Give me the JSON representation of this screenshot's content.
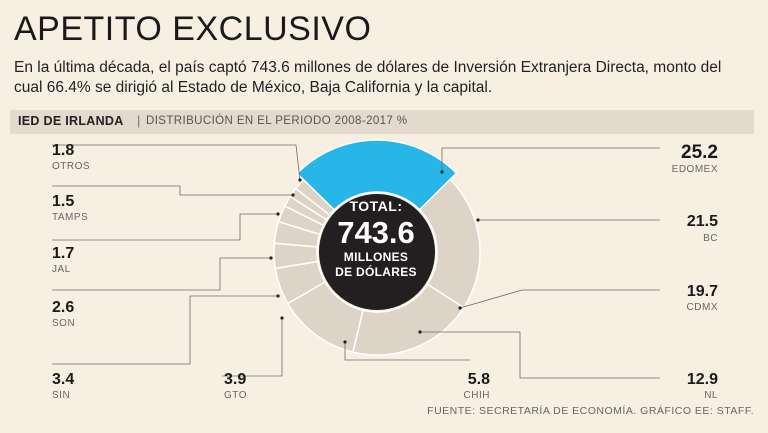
{
  "title": "APETITO EXCLUSIVO",
  "subtitle": "En la última década, el país captó 743.6 millones de dólares de Inversión Extranjera Directa, monto del cual 66.4% se dirigió al Estado de México, Baja California y la capital.",
  "band": {
    "strong": "IED DE IRLANDA",
    "separator": "|",
    "light": "DISTRIBUCIÓN EN EL PERIODO 2008-2017 %"
  },
  "center": {
    "label": "TOTAL:",
    "value": "743.6",
    "unit_line1": "MILLONES",
    "unit_line2": "DE DÓLARES"
  },
  "source": "FUENTE: SECRETARÍA DE ECONOMÍA. GRÁFICO EE: STAFF.",
  "colors": {
    "highlight": "#27b6e8",
    "slice": "#ddd3c6",
    "center": "#231f20",
    "background": "#f8efe3",
    "band": "#e3d9cc"
  },
  "chart_data": {
    "type": "pie",
    "unit": "%",
    "slices": [
      {
        "name": "EDOMEX",
        "value": 25.2,
        "highlight": true
      },
      {
        "name": "BC",
        "value": 21.5
      },
      {
        "name": "CDMX",
        "value": 19.7
      },
      {
        "name": "NL",
        "value": 12.9
      },
      {
        "name": "CHIH",
        "value": 5.8
      },
      {
        "name": "GTO",
        "value": 3.9
      },
      {
        "name": "SIN",
        "value": 3.4
      },
      {
        "name": "SON",
        "value": 2.6
      },
      {
        "name": "JAL",
        "value": 1.7
      },
      {
        "name": "TAMPS",
        "value": 1.5
      },
      {
        "name": "OTROS",
        "value": 1.8
      }
    ]
  }
}
